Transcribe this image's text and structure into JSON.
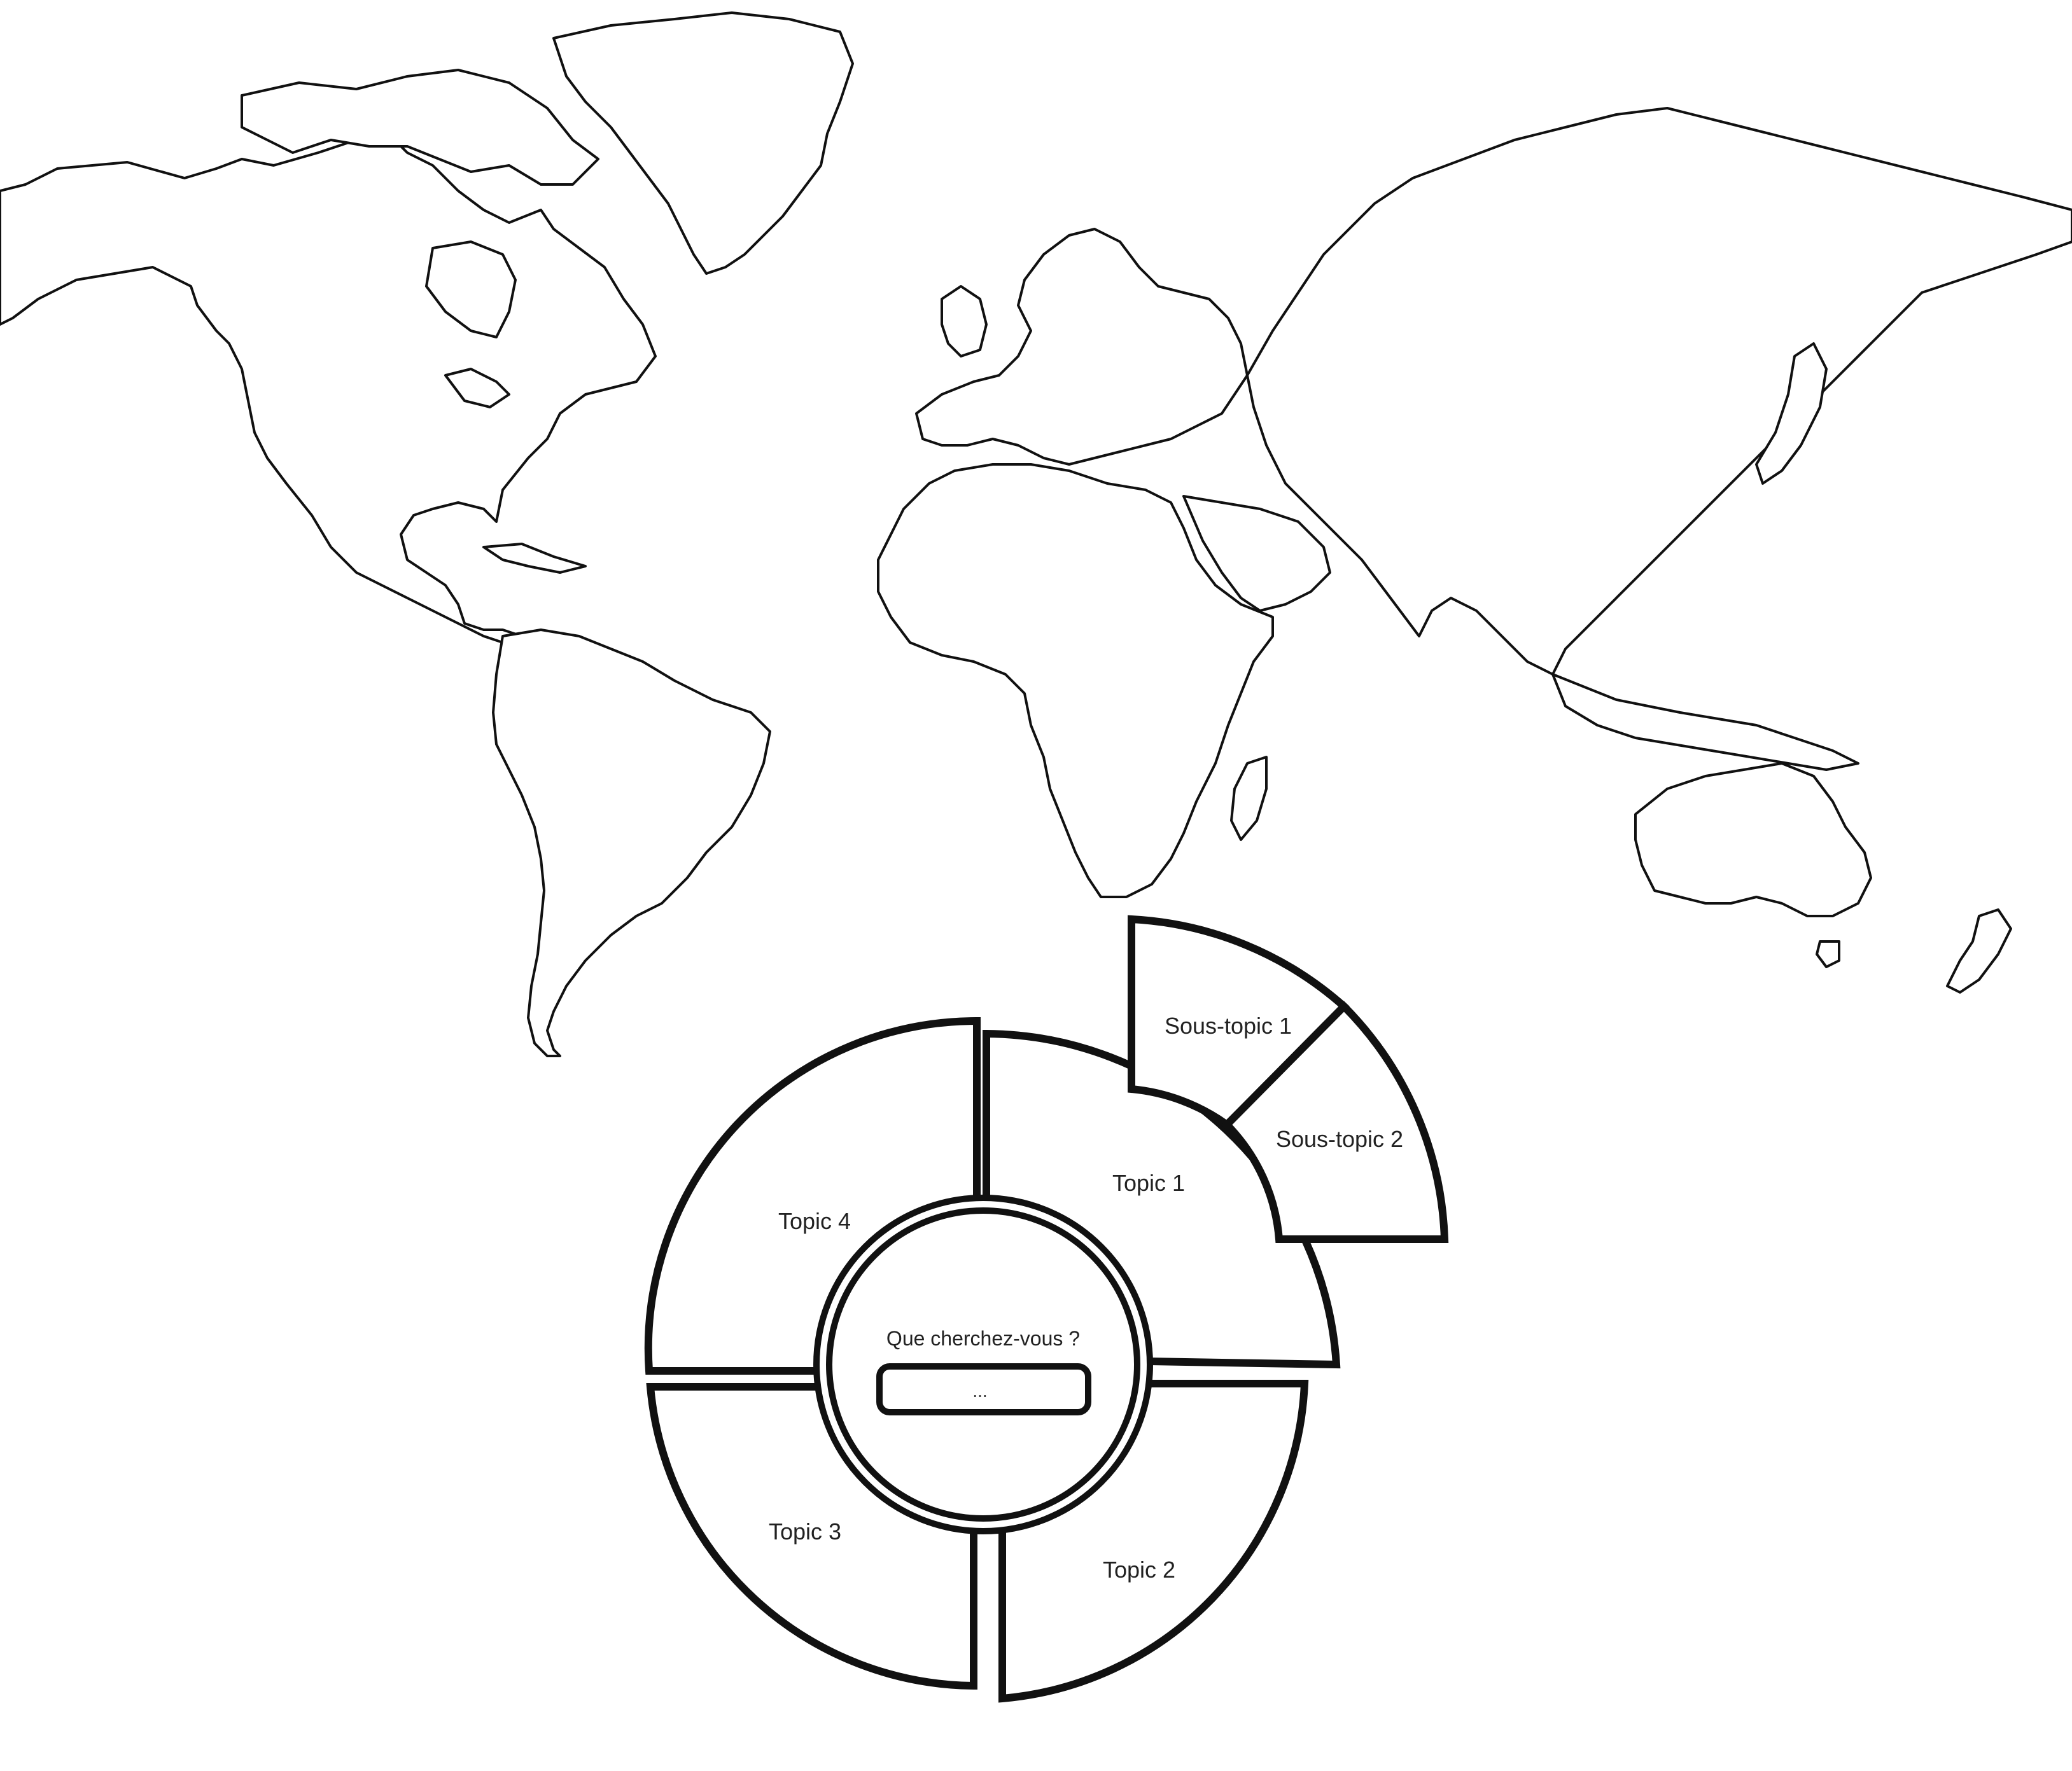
{
  "map": {
    "style": "outline world map",
    "stroke_color": "#111111",
    "fill_color": "#ffffff"
  },
  "radial_menu": {
    "topics": [
      {
        "label": "Topic 1"
      },
      {
        "label": "Topic 2"
      },
      {
        "label": "Topic 3"
      },
      {
        "label": "Topic 4"
      }
    ],
    "subtopics": [
      {
        "label": "Sous-topic 1"
      },
      {
        "label": "Sous-topic 2"
      }
    ],
    "center": {
      "prompt": "Que cherchez-vous ?",
      "search_value": "..."
    }
  },
  "colors": {
    "outline": "#111111",
    "background": "#ffffff"
  }
}
